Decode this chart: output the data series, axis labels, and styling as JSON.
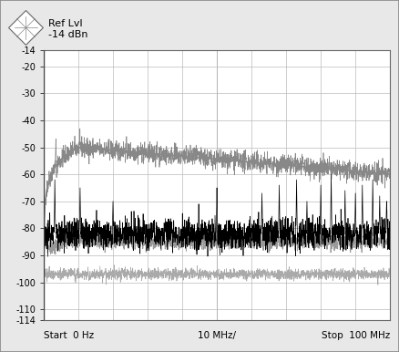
{
  "ref_lvl_line1": "Ref Lvl",
  "ref_lvl_line2": "-14 dBn",
  "xlabel_start": "Start  0 Hz",
  "xlabel_mid": "10 MHz/",
  "xlabel_stop": "Stop  100 MHz",
  "ylim": [
    -114,
    -14
  ],
  "xlim": [
    0,
    100
  ],
  "yticks": [
    -14,
    -20,
    -30,
    -40,
    -50,
    -60,
    -70,
    -80,
    -90,
    -100,
    -110,
    -114
  ],
  "xtick_positions": [
    0,
    10,
    20,
    30,
    40,
    50,
    60,
    70,
    80,
    90,
    100
  ],
  "grid_color": "#bbbbbb",
  "bg_color": "#e8e8e8",
  "plot_bg_color": "#ffffff",
  "border_color": "#666666",
  "trace_upper_noisy_color": "#888888",
  "trace_upper_smooth_color": "#777777",
  "trace_mid_color": "#000000",
  "trace_mid_smooth_color": "#999999",
  "trace_low_color": "#aaaaaa",
  "noise_seed": 42,
  "num_points": 2000
}
